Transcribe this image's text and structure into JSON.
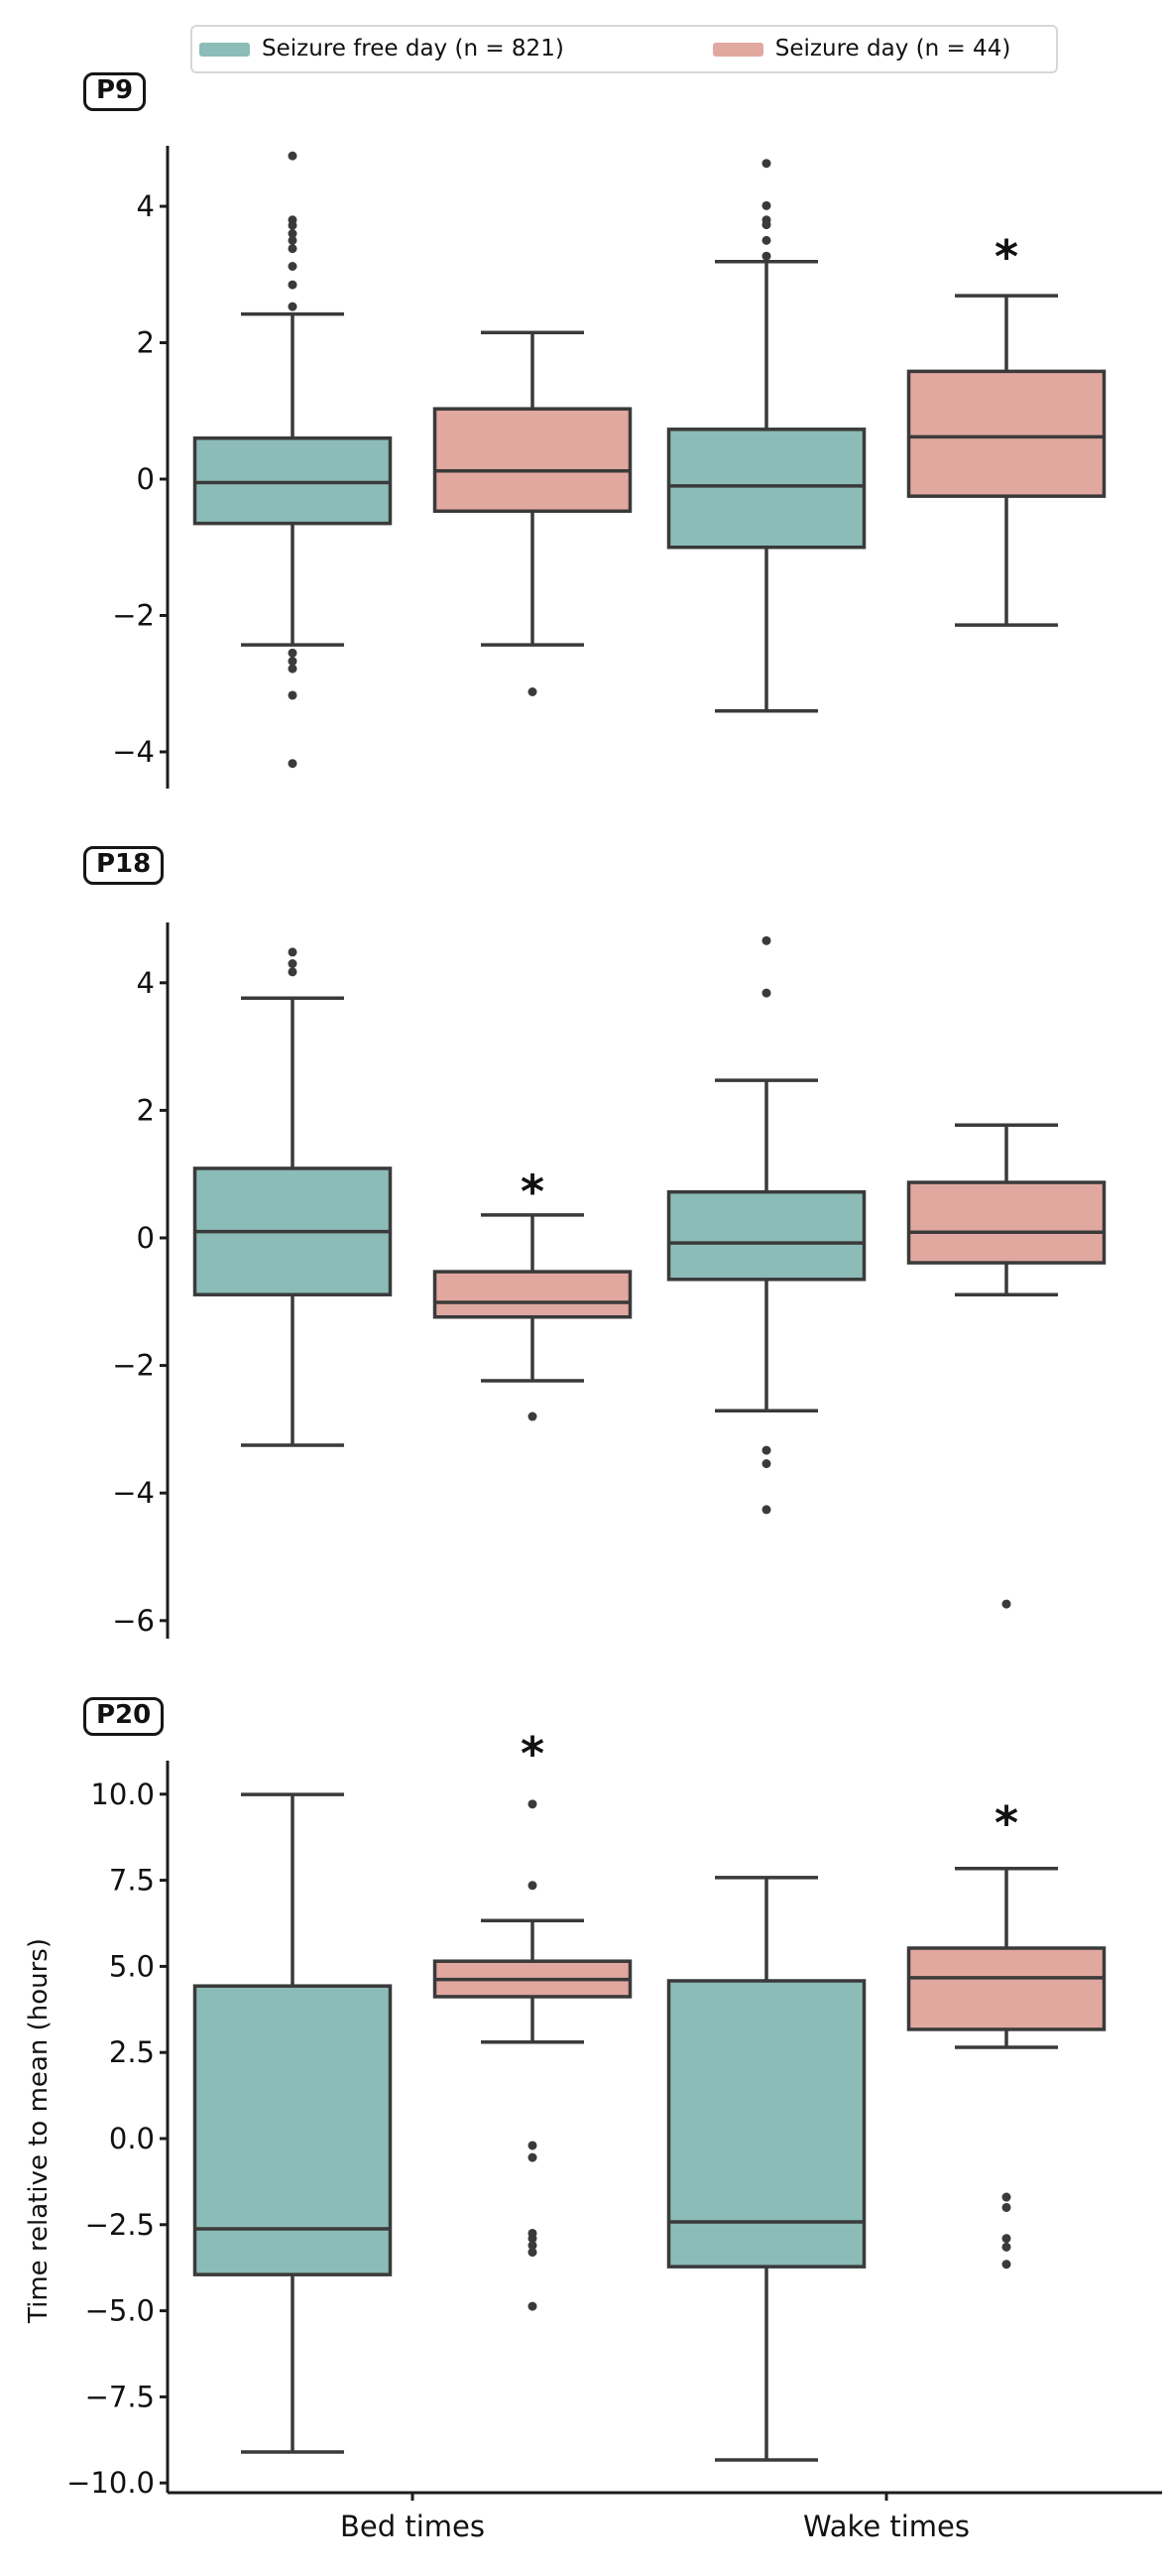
{
  "figure": {
    "background": "#ffffff"
  },
  "legend": {
    "entries": [
      {
        "label": "Seizure free day (n = 821)",
        "color": "#8cbcb7"
      },
      {
        "label": "Seizure day (n = 44)",
        "color": "#e1a8a0"
      }
    ]
  },
  "axes": {
    "ylabel": "Time relative to mean (hours)",
    "x_categories": [
      "Bed times",
      "Wake times"
    ]
  },
  "style": {
    "box_edge": "#3a3a3a",
    "outlier_dot": "#3a3a3a",
    "spine": "#1c1c1c",
    "text": "#111111",
    "significance_marker": "*"
  },
  "chart_data": {
    "type": "boxplot",
    "orientation": "vertical",
    "value_axis_label": "Time relative to mean (hours)",
    "categories": [
      "Bed times",
      "Wake times"
    ],
    "series": [
      "Seizure free day (n = 821)",
      "Seizure day (n = 44)"
    ],
    "legend_position": "top-center",
    "grid": false,
    "panels": [
      {
        "label": "P9",
        "ylim": [
          -4.6,
          4.9
        ],
        "yticks": [
          {
            "value": 4,
            "label": "4"
          },
          {
            "value": 2,
            "label": "2"
          },
          {
            "value": 0,
            "label": "0"
          },
          {
            "value": -2,
            "label": "−2"
          },
          {
            "value": -4,
            "label": "−4"
          }
        ],
        "boxes": [
          {
            "category": "Bed times",
            "series": 0,
            "whisker_low": -2.43,
            "q1": -0.65,
            "median": -0.05,
            "q3": 0.6,
            "whisker_high": 2.42,
            "outliers": [
              4.74,
              3.8,
              3.72,
              3.6,
              3.5,
              3.38,
              3.12,
              2.85,
              2.53,
              -2.55,
              -2.67,
              -2.78,
              -3.17,
              -4.17
            ],
            "sig_star": null
          },
          {
            "category": "Bed times",
            "series": 1,
            "whisker_low": -2.43,
            "q1": -0.47,
            "median": 0.12,
            "q3": 1.03,
            "whisker_high": 2.15,
            "outliers": [
              -3.12
            ],
            "sig_star": null
          },
          {
            "category": "Wake times",
            "series": 0,
            "whisker_low": -3.4,
            "q1": -1.0,
            "median": -0.1,
            "q3": 0.73,
            "whisker_high": 3.19,
            "outliers": [
              4.63,
              4.01,
              3.8,
              3.73,
              3.5,
              3.27
            ],
            "sig_star": null
          },
          {
            "category": "Wake times",
            "series": 1,
            "whisker_low": -2.14,
            "q1": -0.25,
            "median": 0.62,
            "q3": 1.58,
            "whisker_high": 2.69,
            "outliers": [],
            "sig_star": 3.26
          }
        ]
      },
      {
        "label": "P18",
        "ylim": [
          -6.3,
          4.95
        ],
        "yticks": [
          {
            "value": 4,
            "label": "4"
          },
          {
            "value": 2,
            "label": "2"
          },
          {
            "value": 0,
            "label": "0"
          },
          {
            "value": -2,
            "label": "−2"
          },
          {
            "value": -4,
            "label": "−4"
          },
          {
            "value": -6,
            "label": "−6"
          }
        ],
        "boxes": [
          {
            "category": "Bed times",
            "series": 0,
            "whisker_low": -3.25,
            "q1": -0.89,
            "median": 0.1,
            "q3": 1.09,
            "whisker_high": 3.76,
            "outliers": [
              4.48,
              4.3,
              4.17
            ],
            "sig_star": null
          },
          {
            "category": "Bed times",
            "series": 1,
            "whisker_low": -2.24,
            "q1": -1.24,
            "median": -1.01,
            "q3": -0.53,
            "whisker_high": 0.36,
            "outliers": [
              -2.8
            ],
            "sig_star": 0.72
          },
          {
            "category": "Wake times",
            "series": 0,
            "whisker_low": -2.71,
            "q1": -0.65,
            "median": -0.08,
            "q3": 0.72,
            "whisker_high": 2.47,
            "outliers": [
              4.66,
              3.84,
              -3.33,
              -3.54,
              -4.26
            ],
            "sig_star": null
          },
          {
            "category": "Wake times",
            "series": 1,
            "whisker_low": -0.89,
            "q1": -0.39,
            "median": 0.09,
            "q3": 0.87,
            "whisker_high": 1.77,
            "outliers": [
              -5.74
            ],
            "sig_star": null
          }
        ]
      },
      {
        "label": "P20",
        "ylim": [
          -10.3,
          11.0
        ],
        "yticks": [
          {
            "value": 10.0,
            "label": "10.0"
          },
          {
            "value": 7.5,
            "label": "7.5"
          },
          {
            "value": 5.0,
            "label": "5.0"
          },
          {
            "value": 2.5,
            "label": "2.5"
          },
          {
            "value": 0.0,
            "label": "0.0"
          },
          {
            "value": -2.5,
            "label": "−2.5"
          },
          {
            "value": -5.0,
            "label": "−5.0"
          },
          {
            "value": -7.5,
            "label": "−7.5"
          },
          {
            "value": -10.0,
            "label": "−10.0"
          }
        ],
        "boxes": [
          {
            "category": "Bed times",
            "series": 0,
            "whisker_low": -9.1,
            "q1": -3.95,
            "median": -2.62,
            "q3": 4.43,
            "whisker_high": 9.99,
            "outliers": [],
            "sig_star": null
          },
          {
            "category": "Bed times",
            "series": 1,
            "whisker_low": 2.8,
            "q1": 4.12,
            "median": 4.62,
            "q3": 5.15,
            "whisker_high": 6.33,
            "outliers": [
              9.71,
              7.35,
              -0.2,
              -0.55,
              -2.75,
              -2.9,
              -3.1,
              -3.3,
              -4.87
            ],
            "sig_star": 11.17
          },
          {
            "category": "Wake times",
            "series": 0,
            "whisker_low": -9.33,
            "q1": -3.72,
            "median": -2.42,
            "q3": 4.58,
            "whisker_high": 7.58,
            "outliers": [],
            "sig_star": null
          },
          {
            "category": "Wake times",
            "series": 1,
            "whisker_low": 2.65,
            "q1": 3.17,
            "median": 4.67,
            "q3": 5.53,
            "whisker_high": 7.84,
            "outliers": [
              -1.7,
              -2.0,
              -2.9,
              -3.15,
              -3.65
            ],
            "sig_star": 9.16
          }
        ]
      }
    ]
  }
}
